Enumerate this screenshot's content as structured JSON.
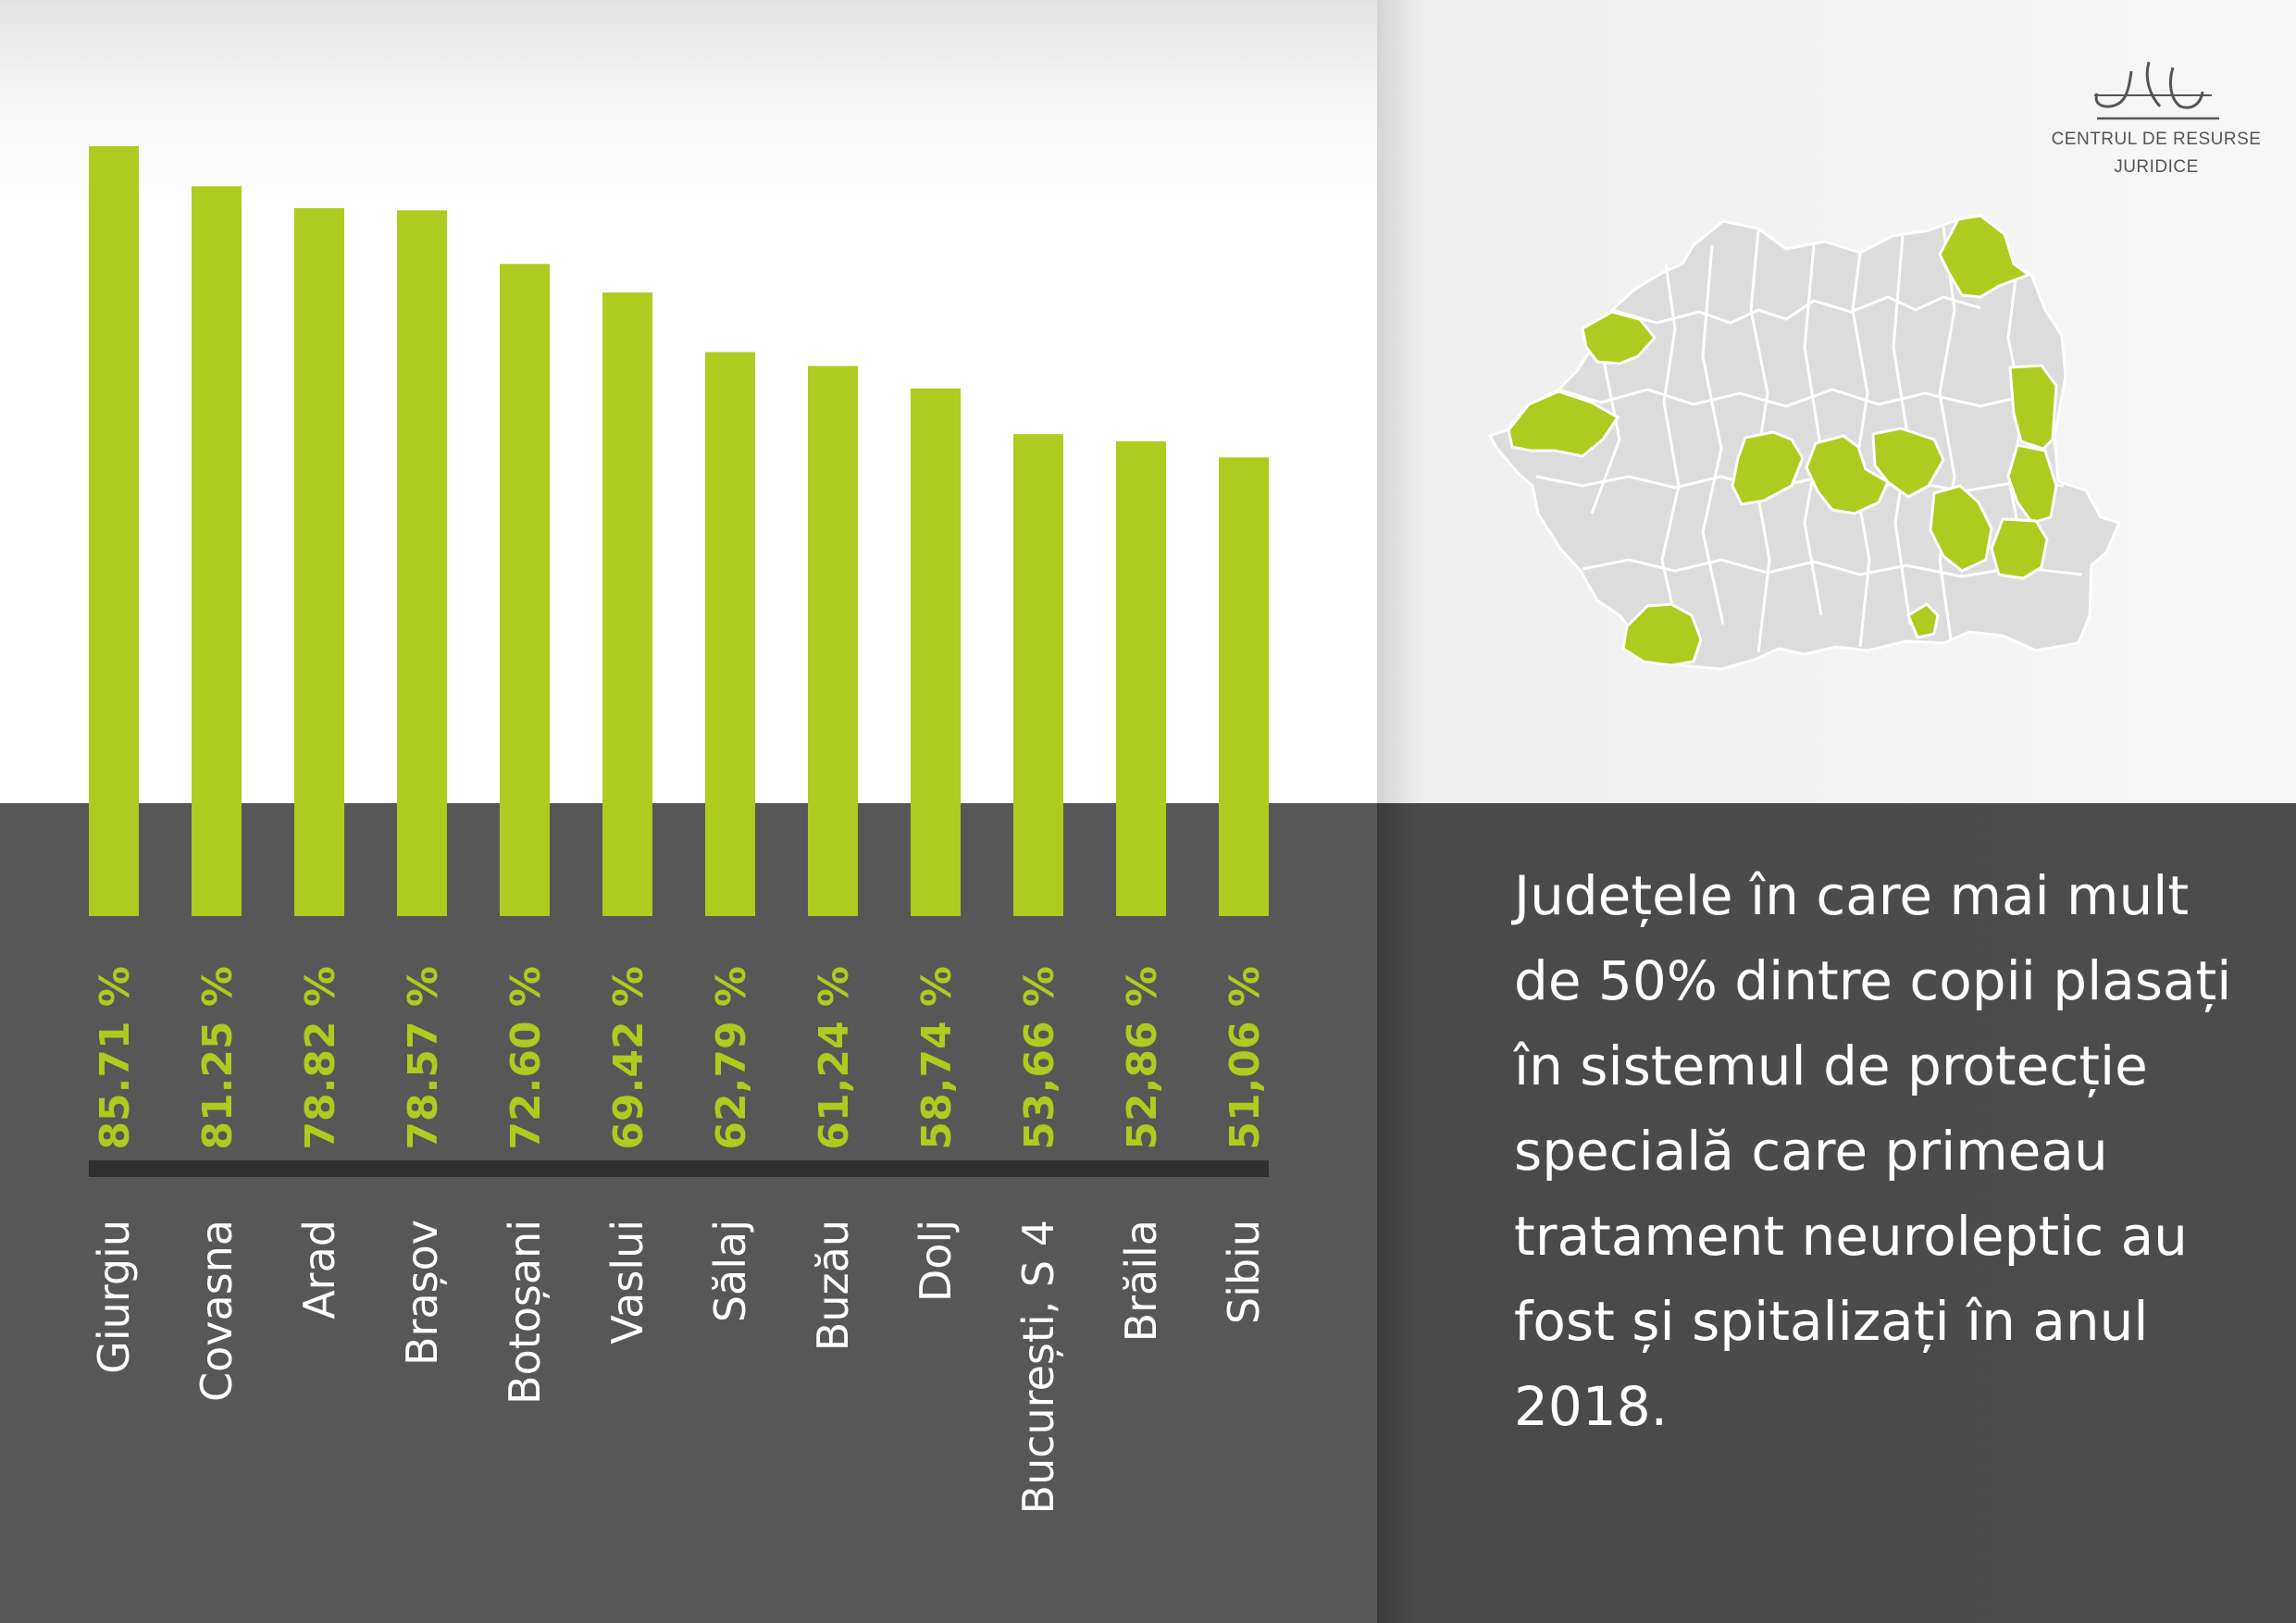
{
  "colors": {
    "bar": "#aecb1f",
    "value_label": "#aecb1f",
    "axis_line": "#2f2f2f",
    "category_label": "#ffffff",
    "map_base": "#dcdcdc",
    "map_highlight": "#aecb1f"
  },
  "chart_data": {
    "type": "bar",
    "orientation": "vertical",
    "title": "",
    "xlabel": "",
    "ylabel": "",
    "ylim": [
      0,
      100
    ],
    "grid": false,
    "categories": [
      "Giurgiu",
      "Covasna",
      "Arad",
      "Brașov",
      "Botoșani",
      "Vaslui",
      "Sălaj",
      "Buzău",
      "Dolj",
      "București, S 4",
      "Brăila",
      "Sibiu"
    ],
    "value_labels": [
      "85.71 %",
      "81.25 %",
      "78.82 %",
      "78.57 %",
      "72.60 %",
      "69.42 %",
      "62,79 %",
      "61,24 %",
      "58,74 %",
      "53,66 %",
      "52,86 %",
      "51,06 %"
    ],
    "series": [
      {
        "values": [
          85.71,
          81.25,
          78.82,
          78.57,
          72.6,
          69.42,
          62.79,
          61.24,
          58.74,
          53.66,
          52.86,
          51.06
        ]
      }
    ]
  },
  "logo": {
    "line1": "CENTRUL DE RESURSE",
    "line2": "JURIDICE",
    "icon": "cj-scales-logo-icon"
  },
  "map": {
    "icon": "romania-counties-map-icon"
  },
  "headline": "Județele în care mai mult de 50% dintre copii plasați în sistemul de protecție specială care primeau tratament neuroleptic au fost și spitalizați în anul 2018."
}
